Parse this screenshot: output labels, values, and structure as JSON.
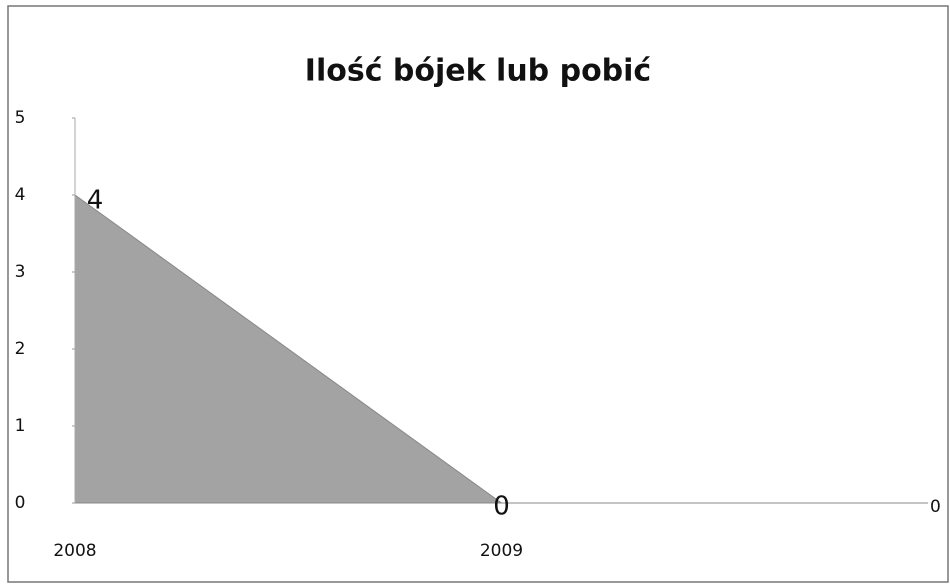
{
  "chart_data": {
    "type": "area",
    "title": "Ilość bójek lub pobić",
    "categories": [
      "2008",
      "2009",
      null
    ],
    "values": [
      4,
      0,
      0
    ],
    "color": "#a3a3a3",
    "ylim": [
      0,
      5
    ],
    "yticks": [
      0,
      1,
      2,
      3,
      4,
      5
    ]
  }
}
